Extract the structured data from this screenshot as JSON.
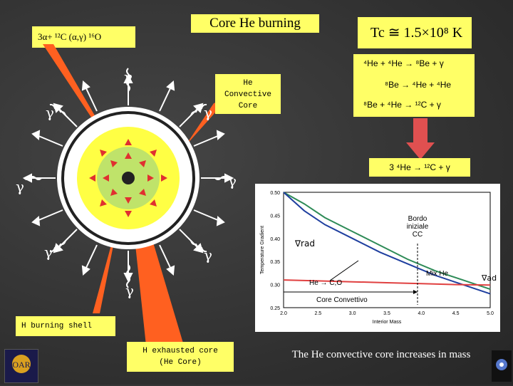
{
  "title": "Core He burning",
  "reaction_top_left": "3α+ ¹²C (α,γ) ¹⁶O",
  "core_temperature": "Tc ≅ 1.5×10⁸ K",
  "reaction_chain": [
    "⁴He + ⁴He → ⁸Be + γ",
    "⁸Be → ⁴He + ⁴He",
    "⁸Be + ⁴He → ¹²C + γ"
  ],
  "net_reaction": "3 ⁴He → ¹²C + γ",
  "labels": {
    "convective_core": "He\nConvective\nCore",
    "burning_shell": "H burning shell",
    "exhausted_core": "H exhausted core\n(He Core)",
    "gamma": "γ"
  },
  "bottom_text": "The He convective core increases in mass",
  "chart": {
    "ylabel": "Temperature Gradient",
    "xlabel": "Interior Mass",
    "yticks": [
      "0.50",
      "0.45",
      "0.40",
      "0.35",
      "0.30",
      "0.25"
    ],
    "xticks": [
      "2.0",
      "2.5",
      "3.0",
      "3.5",
      "4.0",
      "4.5",
      "5.0"
    ],
    "annot_rad": "∇rad",
    "annot_ad": "∇ad",
    "annot_bordo": "Bordo\niniziale\nCC",
    "annot_mix": "Mix He",
    "annot_heco": "He → C,O",
    "annot_conv": "Core Convettivo"
  },
  "chart_data": {
    "type": "line",
    "xlim": [
      2.0,
      5.0
    ],
    "ylim": [
      0.25,
      0.5
    ],
    "series": [
      {
        "name": "∇rad",
        "color": "#2e8b57",
        "x": [
          2.0,
          2.3,
          2.6,
          3.0,
          3.4,
          3.8,
          4.2,
          4.6,
          5.0
        ],
        "y": [
          0.5,
          0.475,
          0.445,
          0.415,
          0.385,
          0.355,
          0.33,
          0.31,
          0.29
        ]
      },
      {
        "name": "",
        "color": "#1f3f9f",
        "x": [
          2.0,
          2.3,
          2.6,
          3.0,
          3.4,
          3.8,
          4.2,
          4.6,
          5.0
        ],
        "y": [
          0.5,
          0.46,
          0.43,
          0.4,
          0.37,
          0.345,
          0.32,
          0.3,
          0.28
        ]
      },
      {
        "name": "∇ad",
        "color": "#e04040",
        "x": [
          2.0,
          2.5,
          3.0,
          3.5,
          4.0,
          4.5,
          5.0
        ],
        "y": [
          0.31,
          0.308,
          0.306,
          0.304,
          0.302,
          0.3,
          0.299
        ]
      }
    ]
  }
}
